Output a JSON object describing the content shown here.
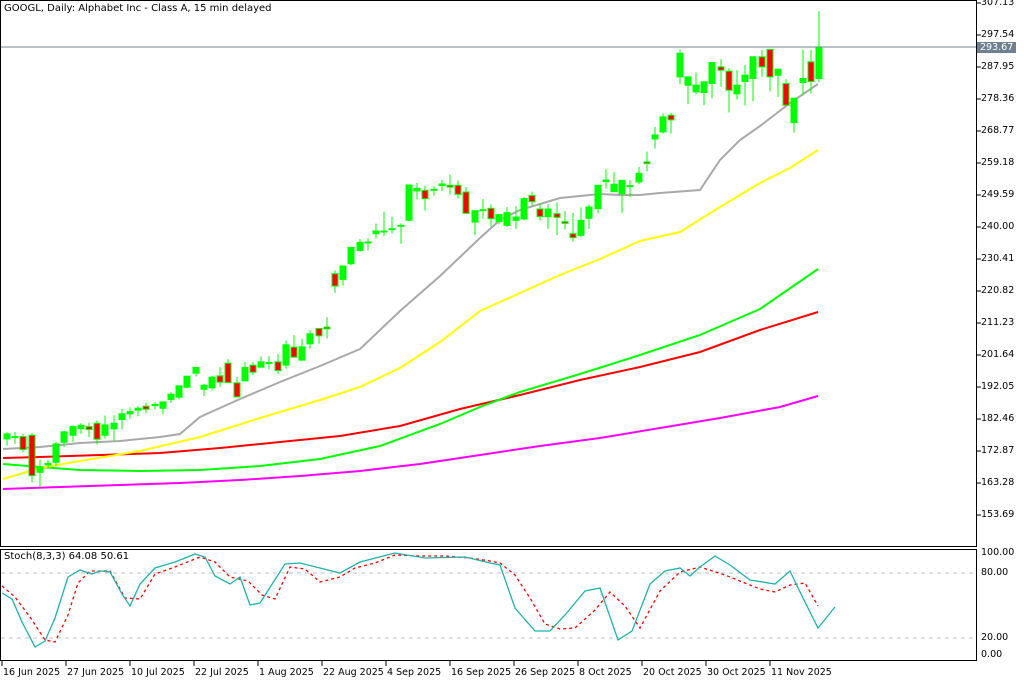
{
  "header": {
    "title": "GOOGL, Daily:  Alphabet Inc - Class A, 15 min delayed"
  },
  "price_axis": {
    "labels": [
      "307.13",
      "297.54",
      "287.95",
      "278.36",
      "268.77",
      "259.18",
      "249.59",
      "240.00",
      "230.41",
      "220.82",
      "211.23",
      "201.64",
      "192.05",
      "182.46",
      "172.87",
      "163.28",
      "153.69"
    ],
    "bid_label": "293.67"
  },
  "stoch": {
    "title": "Stoch(8,3,3) 64.08 50.61",
    "axis_labels": [
      "100.00",
      "80.00",
      "20.00",
      "0.00"
    ]
  },
  "time_axis": {
    "labels": [
      "16 Jun 2025",
      "27 Jun 2025",
      "10 Jul 2025",
      "22 Jul 2025",
      "1 Aug 2025",
      "22 Aug 2025",
      "4 Sep 2025",
      "16 Sep 2025",
      "26 Sep 2025",
      "8 Oct 2025",
      "20 Oct 2025",
      "30 Oct 2025",
      "11 Nov 2025"
    ]
  },
  "colors": {
    "bull": "#00ff00",
    "bear": "#ff0000",
    "ma_fast": "#a9a9a9",
    "ma_50": "#ffff00",
    "ma_100": "#00ff00",
    "ma_150": "#ff0000",
    "ma_200": "#ff00ff",
    "stoch_main": "#20b2aa",
    "stoch_signal": "#ff0000",
    "bid_line": "#708090"
  },
  "chart_data": {
    "type": "candlestick",
    "title": "GOOGL, Daily:  Alphabet Inc - Class A, 15 min delayed",
    "ylim": [
      150.5,
      307.13
    ],
    "y_ticks": [
      307.13,
      297.54,
      287.95,
      278.36,
      268.77,
      259.18,
      249.59,
      240.0,
      230.41,
      220.82,
      211.23,
      201.64,
      192.05,
      182.46,
      172.87,
      163.28,
      153.69
    ],
    "current_price": 293.67,
    "x_tick_labels": [
      "16 Jun 2025",
      "27 Jun 2025",
      "10 Jul 2025",
      "22 Jul 2025",
      "1 Aug 2025",
      "22 Aug 2025",
      "4 Sep 2025",
      "16 Sep 2025",
      "26 Sep 2025",
      "8 Oct 2025",
      "20 Oct 2025",
      "30 Oct 2025",
      "11 Nov 2025"
    ],
    "candles_ohlc": [
      [
        176.5,
        178.5,
        174.5,
        178.0
      ],
      [
        177.0,
        178.6,
        175.0,
        177.2
      ],
      [
        177.2,
        178.0,
        172.5,
        173.3
      ],
      [
        177.6,
        178.2,
        163.5,
        165.5
      ],
      [
        166.5,
        170.3,
        162.0,
        168.0
      ],
      [
        168.7,
        170.2,
        167.8,
        169.2
      ],
      [
        169.5,
        175.6,
        168.3,
        175.0
      ],
      [
        175.5,
        178.9,
        174.0,
        178.6
      ],
      [
        177.6,
        180.6,
        175.6,
        180.2
      ],
      [
        179.6,
        181.2,
        178.0,
        180.6
      ],
      [
        180.2,
        181.4,
        177.0,
        179.3
      ],
      [
        181.2,
        182.0,
        174.8,
        176.4
      ],
      [
        177.6,
        183.5,
        176.6,
        180.7
      ],
      [
        179.5,
        183.6,
        176.0,
        181.2
      ],
      [
        182.3,
        185.5,
        179.3,
        184.0
      ],
      [
        184.0,
        186.0,
        182.5,
        184.7
      ],
      [
        185.1,
        186.3,
        183.3,
        185.7
      ],
      [
        186.3,
        187.4,
        184.2,
        185.4
      ],
      [
        186.5,
        187.5,
        185.3,
        186.8
      ],
      [
        185.7,
        187.6,
        183.8,
        187.6
      ],
      [
        188.3,
        190.5,
        187.3,
        189.9
      ],
      [
        189.0,
        192.5,
        188.3,
        192.4
      ],
      [
        192.0,
        195.4,
        191.6,
        195.3
      ],
      [
        196.2,
        197.8,
        195.2,
        197.9
      ],
      [
        191.4,
        193.0,
        189.4,
        192.6
      ],
      [
        191.8,
        195.4,
        191.0,
        195.0
      ],
      [
        195.4,
        198.0,
        192.1,
        193.5
      ],
      [
        199.2,
        200.4,
        193.4,
        193.4
      ],
      [
        193.3,
        195.0,
        188.9,
        189.1
      ],
      [
        193.9,
        199.6,
        193.9,
        197.9
      ],
      [
        198.6,
        199.6,
        195.6,
        196.5
      ],
      [
        198.0,
        201.2,
        197.9,
        199.6
      ],
      [
        199.3,
        201.3,
        197.4,
        199.4
      ],
      [
        199.6,
        202.0,
        196.0,
        197.0
      ],
      [
        198.6,
        206.0,
        197.6,
        204.7
      ],
      [
        204.0,
        207.6,
        200.8,
        201.0
      ],
      [
        200.1,
        206.5,
        200.5,
        204.1
      ],
      [
        205.0,
        209.1,
        203.5,
        208.0
      ],
      [
        209.6,
        209.6,
        205.0,
        207.4
      ],
      [
        210.0,
        213.0,
        206.6,
        209.5
      ],
      [
        226.0,
        227.0,
        220.3,
        222.3
      ],
      [
        224.3,
        228.5,
        222.4,
        228.3
      ],
      [
        229.0,
        232.7,
        228.5,
        233.9
      ],
      [
        233.0,
        236.4,
        232.6,
        235.4
      ],
      [
        235.5,
        236.6,
        233.0,
        235.2
      ],
      [
        238.0,
        241.0,
        236.6,
        238.8
      ],
      [
        238.8,
        244.6,
        237.3,
        238.8
      ],
      [
        239.5,
        243.0,
        238.0,
        239.3
      ],
      [
        240.5,
        241.1,
        235.0,
        240.5
      ],
      [
        242.0,
        252.6,
        242.0,
        252.6
      ],
      [
        250.8,
        253.2,
        248.3,
        251.6
      ],
      [
        251.0,
        252.4,
        245.0,
        248.5
      ],
      [
        251.0,
        252.2,
        249.4,
        251.3
      ],
      [
        252.4,
        254.1,
        250.8,
        252.9
      ],
      [
        252.5,
        255.7,
        249.7,
        252.0
      ],
      [
        252.5,
        253.9,
        248.5,
        249.8
      ],
      [
        250.5,
        252.0,
        245.1,
        244.1
      ],
      [
        241.5,
        243.5,
        237.6,
        244.9
      ],
      [
        245.0,
        248.4,
        242.5,
        245.2
      ],
      [
        245.6,
        246.8,
        240.1,
        242.5
      ],
      [
        241.6,
        243.7,
        240.8,
        243.7
      ],
      [
        240.5,
        246.0,
        240.0,
        244.3
      ],
      [
        242.0,
        246.2,
        239.4,
        243.0
      ],
      [
        242.4,
        249.0,
        242.0,
        248.5
      ],
      [
        249.4,
        250.6,
        246.2,
        247.6
      ],
      [
        245.4,
        247.1,
        241.9,
        243.1
      ],
      [
        243.1,
        246.9,
        239.4,
        245.4
      ],
      [
        244.0,
        247.4,
        237.6,
        242.9
      ],
      [
        241.6,
        244.8,
        239.3,
        241.1
      ],
      [
        238.0,
        244.2,
        235.6,
        236.8
      ],
      [
        237.5,
        245.9,
        236.9,
        242.0
      ],
      [
        242.6,
        246.8,
        239.4,
        246.0
      ],
      [
        245.5,
        251.6,
        244.0,
        252.5
      ],
      [
        253.6,
        257.3,
        251.5,
        254.1
      ],
      [
        250.6,
        256.4,
        252.6,
        252.8
      ],
      [
        250.0,
        253.7,
        244.2,
        254.0
      ],
      [
        252.1,
        254.0,
        249.0,
        252.4
      ],
      [
        253.5,
        258.0,
        252.8,
        256.1
      ],
      [
        259.5,
        262.6,
        256.6,
        259.0
      ],
      [
        266.4,
        270.0,
        263.5,
        267.6
      ],
      [
        268.5,
        274.0,
        268.0,
        273.0
      ],
      [
        273.5,
        274.2,
        268.0,
        272.1
      ],
      [
        285.0,
        293.2,
        282.8,
        292.1
      ],
      [
        282.5,
        283.8,
        276.8,
        285.0
      ],
      [
        280.5,
        286.3,
        279.8,
        282.5
      ],
      [
        280.3,
        283.4,
        276.5,
        283.5
      ],
      [
        283.0,
        287.0,
        278.6,
        289.3
      ],
      [
        288.0,
        290.3,
        282.0,
        287.0
      ],
      [
        286.7,
        287.6,
        274.3,
        281.0
      ],
      [
        279.9,
        287.0,
        278.2,
        282.5
      ],
      [
        283.6,
        288.5,
        276.4,
        285.5
      ],
      [
        284.5,
        287.0,
        277.7,
        291.0
      ],
      [
        291.0,
        293.0,
        285.0,
        288.0
      ],
      [
        293.2,
        292.2,
        280.7,
        285.0
      ],
      [
        285.5,
        287.3,
        279.0,
        287.3
      ],
      [
        283.0,
        284.3,
        278.3,
        276.5
      ],
      [
        271.3,
        276.0,
        268.3,
        278.6
      ],
      [
        283.3,
        293.2,
        279.5,
        284.5
      ],
      [
        289.5,
        293.0,
        280.0,
        283.6
      ],
      [
        284.5,
        304.7,
        283.3,
        293.7
      ]
    ],
    "moving_averages_pixel_paths": "see SVG",
    "stochastic": {
      "k_last": 64.08,
      "d_last": 50.61,
      "levels": [
        80,
        20
      ],
      "ylim": [
        0,
        100
      ]
    }
  }
}
